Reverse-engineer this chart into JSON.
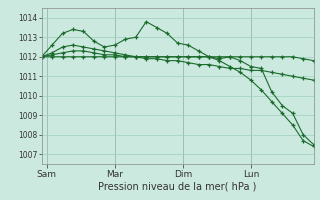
{
  "bg_color": "#cce9e0",
  "grid_color": "#9ecfbe",
  "line_color": "#1a6b2a",
  "xlabel": "Pression niveau de la mer( hPa )",
  "ylim": [
    1006.5,
    1014.5
  ],
  "yticks": [
    1007,
    1008,
    1009,
    1010,
    1011,
    1012,
    1013,
    1014
  ],
  "xtick_positions": [
    0.5,
    7,
    13.5,
    20,
    26.5
  ],
  "xtick_labels": [
    "Sam",
    "Mar",
    "Dim",
    "Lun",
    ""
  ],
  "vline_positions": [
    0.5,
    7,
    13.5,
    20,
    26.5
  ],
  "n_points": 27,
  "series1": [
    1012.0,
    1012.6,
    1013.2,
    1013.4,
    1013.3,
    1012.8,
    1012.5,
    1012.6,
    1012.9,
    1013.0,
    1013.8,
    1013.5,
    1013.2,
    1012.7,
    1012.6,
    1012.3,
    1012.0,
    1011.9,
    1012.0,
    1011.8,
    1011.5,
    1011.4,
    1010.2,
    1009.5,
    1009.1,
    1008.0,
    1007.5
  ],
  "series2": [
    1012.0,
    1012.1,
    1012.2,
    1012.3,
    1012.3,
    1012.2,
    1012.1,
    1012.1,
    1012.0,
    1012.0,
    1011.9,
    1011.9,
    1011.8,
    1011.8,
    1011.7,
    1011.6,
    1011.6,
    1011.5,
    1011.4,
    1011.4,
    1011.3,
    1011.3,
    1011.2,
    1011.1,
    1011.0,
    1010.9,
    1010.8
  ],
  "series3": [
    1012.0,
    1012.0,
    1012.0,
    1012.0,
    1012.0,
    1012.0,
    1012.0,
    1012.0,
    1012.0,
    1012.0,
    1012.0,
    1012.0,
    1012.0,
    1012.0,
    1012.0,
    1012.0,
    1012.0,
    1012.0,
    1012.0,
    1012.0,
    1012.0,
    1012.0,
    1012.0,
    1012.0,
    1012.0,
    1011.9,
    1011.8
  ],
  "series4": [
    1012.0,
    1012.2,
    1012.5,
    1012.6,
    1012.5,
    1012.4,
    1012.3,
    1012.2,
    1012.1,
    1012.0,
    1012.0,
    1012.0,
    1012.0,
    1012.0,
    1012.0,
    1012.0,
    1012.0,
    1011.8,
    1011.5,
    1011.2,
    1010.8,
    1010.3,
    1009.7,
    1009.1,
    1008.5,
    1007.7,
    1007.4
  ]
}
